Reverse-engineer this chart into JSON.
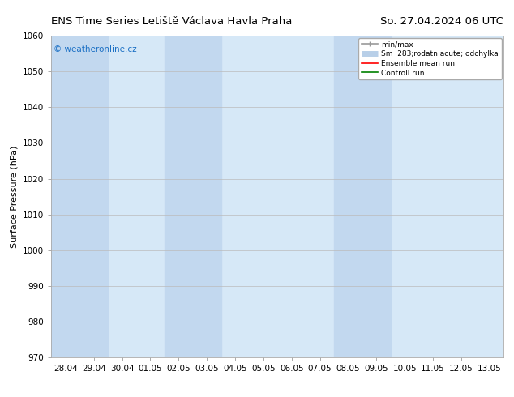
{
  "title_left": "ENS Time Series Letiště Václava Havla Praha",
  "title_right": "So. 27.04.2024 06 UTC",
  "ylabel": "Surface Pressure (hPa)",
  "ylim": [
    970,
    1060
  ],
  "yticks": [
    970,
    980,
    990,
    1000,
    1010,
    1020,
    1030,
    1040,
    1050,
    1060
  ],
  "xtick_labels": [
    "28.04",
    "29.04",
    "30.04",
    "01.05",
    "02.05",
    "03.05",
    "04.05",
    "05.05",
    "06.05",
    "07.05",
    "08.05",
    "09.05",
    "10.05",
    "11.05",
    "12.05",
    "13.05"
  ],
  "watermark": "© weatheronline.cz",
  "watermark_color": "#1a6fc4",
  "bg_color": "#ffffff",
  "plot_bg_color": "#d6e8f7",
  "shaded_color_light": "#d6e8f7",
  "shaded_columns_dark": [
    0,
    1,
    4,
    5,
    10,
    11
  ],
  "shaded_color_dark": "#c2d8ef",
  "legend_entries": [
    {
      "label": "min/max",
      "color": "#999999",
      "lw": 1.2,
      "style": "minmax"
    },
    {
      "label": "Sm  283;rodatn acute; odchylka",
      "color": "#b8cfe8",
      "lw": 5,
      "style": "band"
    },
    {
      "label": "Ensemble mean run",
      "color": "#ff0000",
      "lw": 1.2,
      "style": "line"
    },
    {
      "label": "Controll run",
      "color": "#008000",
      "lw": 1.2,
      "style": "line"
    }
  ],
  "grid_color": "#bbbbbb",
  "title_fontsize": 9.5,
  "axis_fontsize": 8,
  "tick_fontsize": 7.5
}
